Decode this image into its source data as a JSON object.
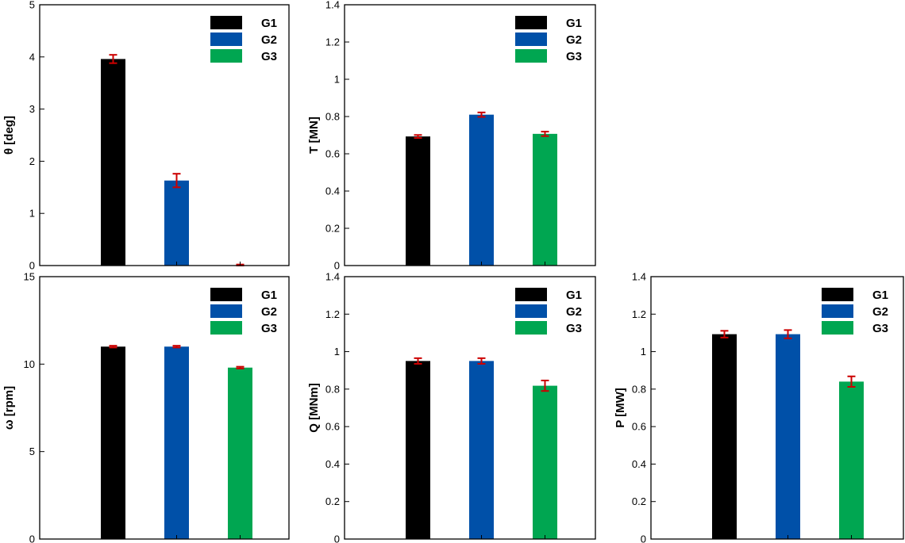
{
  "colors": {
    "G1": "#000000",
    "G2": "#0050a8",
    "G3": "#00a651",
    "error": "#cc0000"
  },
  "chart_data": [
    {
      "type": "bar",
      "categories": [
        "G1",
        "G2",
        "G3"
      ],
      "values": [
        3.96,
        1.63,
        0.0
      ],
      "errors": [
        0.08,
        0.13,
        0.02
      ],
      "ylabel": "θ [deg]",
      "ylim": [
        0,
        5
      ],
      "yticks": [
        "0",
        "1",
        "2",
        "3",
        "4",
        "5"
      ],
      "legend": [
        "G1",
        "G2",
        "G3"
      ],
      "legend_position": "top-right",
      "grid": false
    },
    {
      "type": "bar",
      "categories": [
        "G1",
        "G2",
        "G3"
      ],
      "values": [
        0.693,
        0.81,
        0.707
      ],
      "errors": [
        0.008,
        0.012,
        0.012
      ],
      "ylabel": "T [MN]",
      "ylim": [
        0,
        1.4
      ],
      "yticks": [
        "0",
        "0.2",
        "0.4",
        "0.6",
        "0.8",
        "1",
        "1.2",
        "1.4"
      ],
      "legend": [
        "G1",
        "G2",
        "G3"
      ],
      "legend_position": "top-right",
      "grid": false
    },
    {
      "type": "bar",
      "categories": [
        "G1",
        "G2",
        "G3"
      ],
      "values": [
        11.0,
        11.0,
        9.8
      ],
      "errors": [
        0.05,
        0.05,
        0.05
      ],
      "ylabel": "ω [rpm]",
      "ylim": [
        0,
        15
      ],
      "yticks": [
        "0",
        "5",
        "10",
        "15"
      ],
      "legend": [
        "G1",
        "G2",
        "G3"
      ],
      "legend_position": "top-right",
      "grid": false
    },
    {
      "type": "bar",
      "categories": [
        "G1",
        "G2",
        "G3"
      ],
      "values": [
        0.95,
        0.95,
        0.818
      ],
      "errors": [
        0.015,
        0.015,
        0.028
      ],
      "ylabel": "Q [MNm]",
      "ylim": [
        0,
        1.4
      ],
      "yticks": [
        "0",
        "0.2",
        "0.4",
        "0.6",
        "0.8",
        "1",
        "1.2",
        "1.4"
      ],
      "legend": [
        "G1",
        "G2",
        "G3"
      ],
      "legend_position": "top-right",
      "grid": false
    },
    {
      "type": "bar",
      "categories": [
        "G1",
        "G2",
        "G3"
      ],
      "values": [
        1.093,
        1.093,
        0.84
      ],
      "errors": [
        0.018,
        0.022,
        0.028
      ],
      "ylabel": "P [MW]",
      "ylim": [
        0,
        1.4
      ],
      "yticks": [
        "0",
        "0.2",
        "0.4",
        "0.6",
        "0.8",
        "1",
        "1.2",
        "1.4"
      ],
      "legend": [
        "G1",
        "G2",
        "G3"
      ],
      "legend_position": "top-right",
      "grid": false
    }
  ]
}
